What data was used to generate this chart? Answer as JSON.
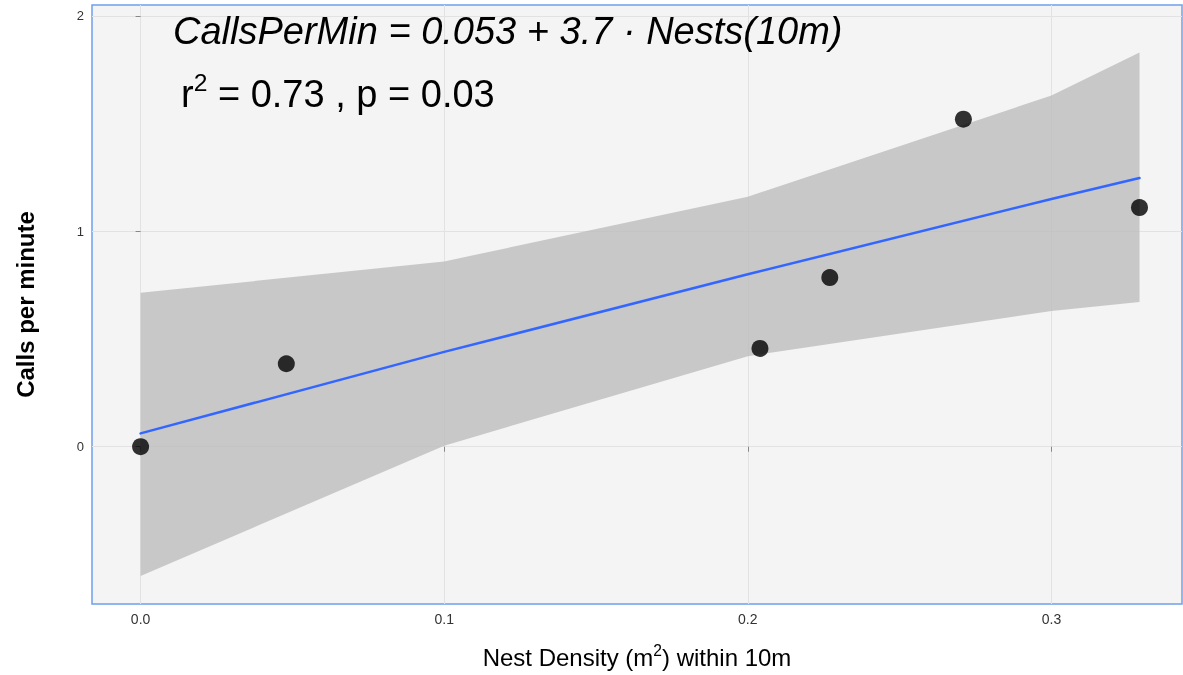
{
  "chart_data": {
    "type": "scatter",
    "xlabel": "Nest Density (m$^{2}$) within 10m",
    "ylabel": "Calls per minute",
    "annotations": [
      "CallsPerMin = 0.053 + 3.7 · Nests(10m)",
      "r$^{2}$ = 0.73 , p = 0.03"
    ],
    "series": [
      {
        "type": "scatter",
        "color": "#000000",
        "marker": "circle",
        "x": [
          0,
          0.048,
          0.204,
          0.227,
          0.271,
          0.329
        ],
        "values": [
          0,
          0.385,
          0.456,
          0.785,
          1.52,
          1.11
        ]
      },
      {
        "type": "line",
        "color": "#3366ff",
        "marker": "none",
        "line_style": "solid",
        "x": [
          0,
          0.1,
          0.2,
          0.3,
          0.329
        ],
        "values": [
          0.062,
          0.44,
          0.8,
          1.15,
          1.247
        ],
        "lower": [
          -0.6,
          0.005,
          0.42,
          0.63,
          0.672
        ],
        "upper": [
          0.714,
          0.86,
          1.16,
          1.63,
          1.83
        ]
      }
    ],
    "xlim": [
      -0.016,
      0.343
    ],
    "ylim": [
      -0.73,
      2.05
    ],
    "xticks": [
      {
        "value": 0,
        "label": "0.0"
      },
      {
        "value": 0.1,
        "label": "0.1"
      },
      {
        "value": 0.2,
        "label": "0.2"
      },
      {
        "value": 0.3,
        "label": "0.3"
      }
    ],
    "yticks": [
      0,
      1,
      2
    ],
    "grid": true
  }
}
